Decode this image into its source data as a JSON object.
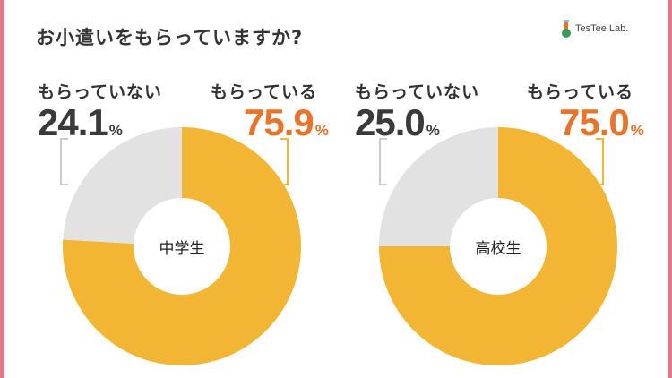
{
  "title": "お小遣いをもらっていますか?",
  "logo": {
    "text": "TesTee Lab."
  },
  "colors": {
    "yes": "#f2b534",
    "no": "#e2e2e2",
    "yes_text": "#e8742a",
    "no_text": "#3a3a3a",
    "frame": "#e07a8a"
  },
  "chart_data": [
    {
      "type": "pie",
      "center_label": "中学生",
      "labels": [
        "もらっている",
        "もらっていない"
      ],
      "values": [
        75.9,
        24.1
      ],
      "value_labels": [
        "75.9",
        "24.1"
      ],
      "unit": "%"
    },
    {
      "type": "pie",
      "center_label": "高校生",
      "labels": [
        "もらっている",
        "もらっていない"
      ],
      "values": [
        75.0,
        25.0
      ],
      "value_labels": [
        "75.0",
        "25.0"
      ],
      "unit": "%"
    }
  ]
}
